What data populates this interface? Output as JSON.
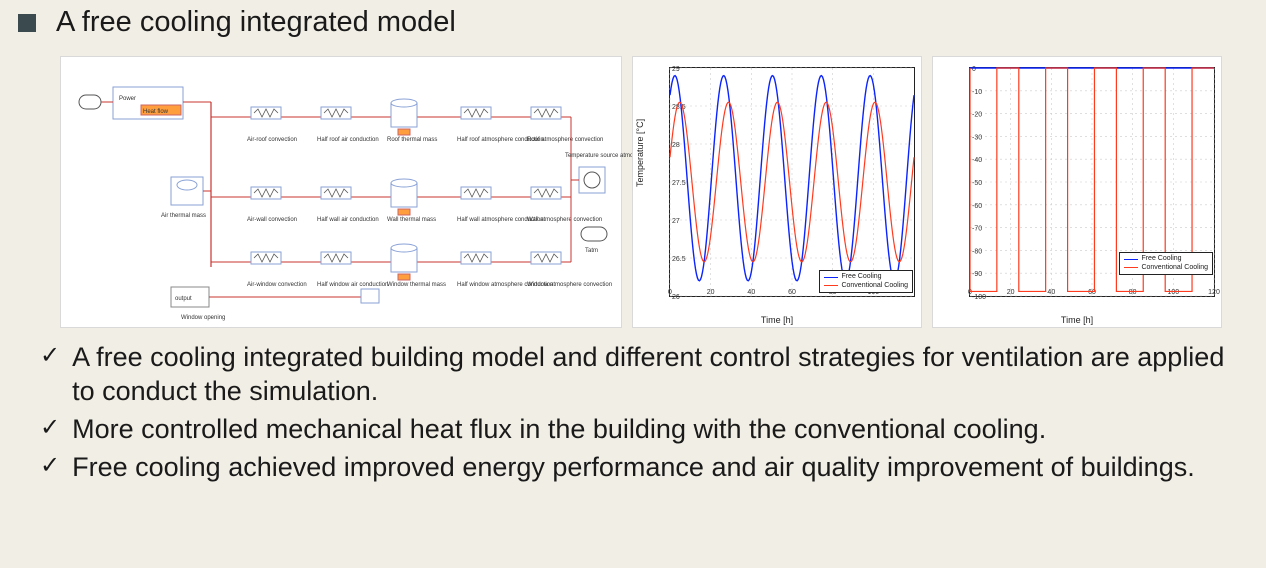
{
  "title": "A free cooling integrated model",
  "diagram": {
    "rows": [
      [
        "Air-roof convection",
        "Half roof air conduction",
        "Roof thermal mass",
        "Half roof atmosphere conduction",
        "Roof atmosphere convection"
      ],
      [
        "Air-wall convection",
        "Half wall air conduction",
        "Wall thermal mass",
        "Half wall atmosphere conduction",
        "Wall atmosphere convection"
      ],
      [
        "Air-window convection",
        "Half window air conduction",
        "Window thermal mass",
        "Half window atmosphere conduction",
        "Window atmosphere convection"
      ]
    ],
    "left_block_top": "Power",
    "left_block_sub": "Heat flow",
    "air_mass": "Air thermal mass",
    "temp_src": "Temperature source atmosphere",
    "tatm": "Tatm",
    "occupant": "output",
    "window_open": "Window opening",
    "line_color": "#c8342f",
    "block_border": "#8aa2d6"
  },
  "chart1": {
    "type": "line",
    "xlabel": "Time [h]",
    "ylabel": "Temperature [°C]",
    "xlim": [
      0,
      120
    ],
    "xtick": [
      0,
      20,
      40,
      60,
      80,
      100
    ],
    "ylim": [
      26,
      29
    ],
    "ytick": [
      26,
      26.5,
      27,
      27.5,
      28,
      28.5,
      29
    ],
    "bg": "#ffffff",
    "grid": "#cccccc",
    "series": [
      {
        "name": "Free Cooling",
        "color": "#0b24fb",
        "width": 1.4,
        "amp": 1.35,
        "offset": 27.55,
        "period": 24,
        "phase": 0.15
      },
      {
        "name": "Conventional Cooling",
        "color": "#ff3b1f",
        "width": 1.2,
        "amp": 1.05,
        "offset": 27.5,
        "period": 24,
        "phase": 0.05
      }
    ]
  },
  "chart2": {
    "type": "line",
    "xlabel": "Time [h]",
    "ylabel": "",
    "xlim": [
      0,
      120
    ],
    "xtick": [
      0,
      20,
      40,
      60,
      80,
      100,
      120
    ],
    "ylim": [
      -100,
      0
    ],
    "ytick": [
      -100,
      -90,
      -80,
      -70,
      -60,
      -50,
      -40,
      -30,
      -20,
      -10,
      0
    ],
    "bg": "#ffffff",
    "grid": "#cccccc",
    "series": [
      {
        "name": "Free Cooling",
        "color": "#0b24fb",
        "width": 1.6,
        "const": 0
      },
      {
        "name": "Conventional Cooling",
        "color": "#ff3b1f",
        "width": 1.2,
        "pulse_low": -98,
        "pulse_high": 0,
        "period": 24,
        "duty": 0.55
      }
    ]
  },
  "bullets": [
    "A free cooling integrated building model and different control strategies for ventilation are applied to conduct the simulation.",
    "More controlled mechanical heat flux in the building with the conventional cooling.",
    "Free cooling achieved improved energy performance and air quality improvement of buildings."
  ],
  "colors": {
    "bullet_square": "#3a4a4f",
    "check": "#1a1a1a"
  }
}
